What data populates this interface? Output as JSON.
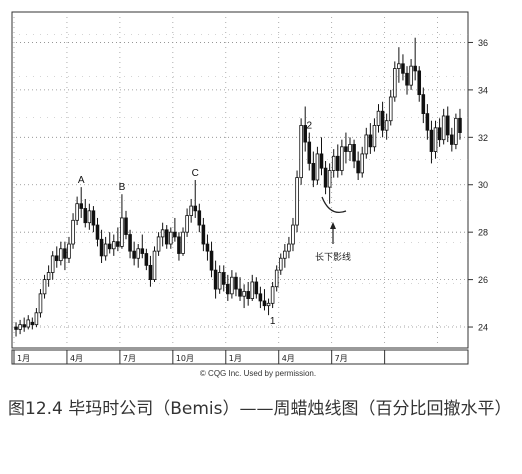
{
  "chart_data": {
    "type": "candlestick",
    "ylim": [
      23.2,
      37.2
    ],
    "y_ticks": [
      24,
      26,
      28,
      30,
      32,
      34,
      36
    ],
    "grid": true,
    "x_tick_labels": [
      "1月",
      "4月",
      "7月",
      "10月",
      "1月",
      "4月",
      "7月"
    ],
    "annotations": [
      {
        "label": "A",
        "week": 16,
        "price": 29.9
      },
      {
        "label": "B",
        "week": 26,
        "price": 29.6
      },
      {
        "label": "C",
        "week": 44,
        "price": 30.2
      },
      {
        "label": "1",
        "week": 63,
        "price": 24.5
      },
      {
        "label": "2",
        "week": 72,
        "price": 33.7
      }
    ],
    "callout": {
      "text": "长下影线",
      "week": 78,
      "price": 29.8
    },
    "weeks": 110,
    "ohlc": [
      [
        24.0,
        24.2,
        23.6,
        23.9
      ],
      [
        23.9,
        24.3,
        23.7,
        24.1
      ],
      [
        24.1,
        24.4,
        23.8,
        24.0
      ],
      [
        24.0,
        24.5,
        23.9,
        24.3
      ],
      [
        24.2,
        24.4,
        23.9,
        24.1
      ],
      [
        24.1,
        24.8,
        24.0,
        24.6
      ],
      [
        24.6,
        25.6,
        24.4,
        25.4
      ],
      [
        25.4,
        26.2,
        25.2,
        26.0
      ],
      [
        26.0,
        26.6,
        25.7,
        26.3
      ],
      [
        26.3,
        27.2,
        26.0,
        27.0
      ],
      [
        27.0,
        27.4,
        26.5,
        26.8
      ],
      [
        26.8,
        27.6,
        26.6,
        27.3
      ],
      [
        27.3,
        27.6,
        26.4,
        26.9
      ],
      [
        26.9,
        27.8,
        26.7,
        27.5
      ],
      [
        27.5,
        28.8,
        27.3,
        28.5
      ],
      [
        28.5,
        29.5,
        28.3,
        29.2
      ],
      [
        29.2,
        29.9,
        28.6,
        29.0
      ],
      [
        29.0,
        29.4,
        28.2,
        28.4
      ],
      [
        28.4,
        29.2,
        28.1,
        28.9
      ],
      [
        28.9,
        29.1,
        28.0,
        28.3
      ],
      [
        28.3,
        28.6,
        27.4,
        27.7
      ],
      [
        27.7,
        28.1,
        26.7,
        27.0
      ],
      [
        27.0,
        27.8,
        26.8,
        27.5
      ],
      [
        27.5,
        28.0,
        27.1,
        27.3
      ],
      [
        27.3,
        27.9,
        27.0,
        27.6
      ],
      [
        27.6,
        28.2,
        27.2,
        27.4
      ],
      [
        27.4,
        29.6,
        27.3,
        28.6
      ],
      [
        28.6,
        28.9,
        27.7,
        27.9
      ],
      [
        27.9,
        28.1,
        26.9,
        27.2
      ],
      [
        27.2,
        27.6,
        26.6,
        26.9
      ],
      [
        26.9,
        27.5,
        26.5,
        27.3
      ],
      [
        27.3,
        27.9,
        26.9,
        27.1
      ],
      [
        27.1,
        27.3,
        26.4,
        26.6
      ],
      [
        26.6,
        27.0,
        25.7,
        26.0
      ],
      [
        26.0,
        27.4,
        25.9,
        27.2
      ],
      [
        27.2,
        28.0,
        27.0,
        27.8
      ],
      [
        27.8,
        28.4,
        27.4,
        28.1
      ],
      [
        28.1,
        28.3,
        27.3,
        27.5
      ],
      [
        27.5,
        28.2,
        27.3,
        28.0
      ],
      [
        28.0,
        28.6,
        27.6,
        27.8
      ],
      [
        27.8,
        28.0,
        26.8,
        27.1
      ],
      [
        27.1,
        28.2,
        27.0,
        28.0
      ],
      [
        28.0,
        29.0,
        27.8,
        28.7
      ],
      [
        28.7,
        29.4,
        28.4,
        29.1
      ],
      [
        29.1,
        30.2,
        28.6,
        28.9
      ],
      [
        28.9,
        29.2,
        28.0,
        28.3
      ],
      [
        28.3,
        28.6,
        27.2,
        27.5
      ],
      [
        27.5,
        27.9,
        26.8,
        27.2
      ],
      [
        27.2,
        27.6,
        26.1,
        26.4
      ],
      [
        26.4,
        26.8,
        25.2,
        25.6
      ],
      [
        25.6,
        26.6,
        25.4,
        26.3
      ],
      [
        26.3,
        26.6,
        25.5,
        25.8
      ],
      [
        25.8,
        26.2,
        25.1,
        25.4
      ],
      [
        25.4,
        26.4,
        25.2,
        26.1
      ],
      [
        26.1,
        26.3,
        25.3,
        25.6
      ],
      [
        25.6,
        26.1,
        25.1,
        25.3
      ],
      [
        25.3,
        25.8,
        24.8,
        25.5
      ],
      [
        25.5,
        25.9,
        24.9,
        25.2
      ],
      [
        25.2,
        26.2,
        25.1,
        25.9
      ],
      [
        25.9,
        26.1,
        25.2,
        25.4
      ],
      [
        25.4,
        25.7,
        24.8,
        25.1
      ],
      [
        25.1,
        25.6,
        24.7,
        24.9
      ],
      [
        24.9,
        25.2,
        24.5,
        25.0
      ],
      [
        25.0,
        25.9,
        24.8,
        25.7
      ],
      [
        25.7,
        26.6,
        25.5,
        26.4
      ],
      [
        26.4,
        27.1,
        26.2,
        26.9
      ],
      [
        26.9,
        27.5,
        26.5,
        27.2
      ],
      [
        27.2,
        27.8,
        26.9,
        27.5
      ],
      [
        27.5,
        28.6,
        27.2,
        28.3
      ],
      [
        28.3,
        30.6,
        28.0,
        30.3
      ],
      [
        30.3,
        32.8,
        30.0,
        32.5
      ],
      [
        32.5,
        33.3,
        31.4,
        31.8
      ],
      [
        31.8,
        32.2,
        30.6,
        30.9
      ],
      [
        30.9,
        31.4,
        29.9,
        30.2
      ],
      [
        30.2,
        31.6,
        30.0,
        31.3
      ],
      [
        31.3,
        32.0,
        30.4,
        30.7
      ],
      [
        30.7,
        31.0,
        29.6,
        29.9
      ],
      [
        29.9,
        30.9,
        29.2,
        30.6
      ],
      [
        30.6,
        31.5,
        30.3,
        31.2
      ],
      [
        31.2,
        31.7,
        30.3,
        30.6
      ],
      [
        30.6,
        31.9,
        30.4,
        31.6
      ],
      [
        31.6,
        32.2,
        30.9,
        31.4
      ],
      [
        31.4,
        32.0,
        31.0,
        31.7
      ],
      [
        31.7,
        31.9,
        30.7,
        31.0
      ],
      [
        31.0,
        31.4,
        30.2,
        30.5
      ],
      [
        30.5,
        31.6,
        30.3,
        31.3
      ],
      [
        31.3,
        32.4,
        31.1,
        32.1
      ],
      [
        32.1,
        32.6,
        31.3,
        31.6
      ],
      [
        31.6,
        32.8,
        31.4,
        32.5
      ],
      [
        32.5,
        33.4,
        32.2,
        33.1
      ],
      [
        33.1,
        33.5,
        32.0,
        32.3
      ],
      [
        32.3,
        33.0,
        31.9,
        32.7
      ],
      [
        32.7,
        34.0,
        32.5,
        33.7
      ],
      [
        33.7,
        35.2,
        33.5,
        34.9
      ],
      [
        34.9,
        35.8,
        34.3,
        35.1
      ],
      [
        35.1,
        35.5,
        34.4,
        34.7
      ],
      [
        34.7,
        35.0,
        33.8,
        34.2
      ],
      [
        34.2,
        35.3,
        34.0,
        35.0
      ],
      [
        35.0,
        36.2,
        34.4,
        34.8
      ],
      [
        34.8,
        35.0,
        33.5,
        33.8
      ],
      [
        33.8,
        34.1,
        32.6,
        33.0
      ],
      [
        33.0,
        33.4,
        31.9,
        32.3
      ],
      [
        32.3,
        32.7,
        30.9,
        31.4
      ],
      [
        31.4,
        32.7,
        31.1,
        32.4
      ],
      [
        32.4,
        32.8,
        31.6,
        31.9
      ],
      [
        31.9,
        33.2,
        31.7,
        32.9
      ],
      [
        32.9,
        33.3,
        31.8,
        32.1
      ],
      [
        32.1,
        32.4,
        31.4,
        31.7
      ],
      [
        31.7,
        33.0,
        31.5,
        32.8
      ],
      [
        32.8,
        33.2,
        31.9,
        32.2
      ]
    ]
  },
  "credit": "© CQG Inc. Used by permission.",
  "caption": "图12.4 毕玛时公司（Bemis）——周蜡烛线图（百分比回撤水平）"
}
